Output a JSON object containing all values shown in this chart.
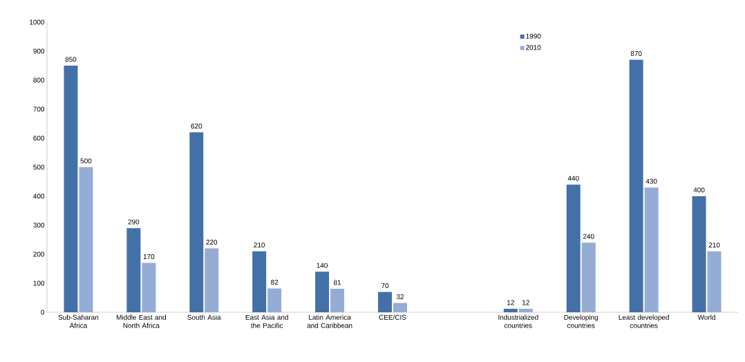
{
  "chart_data": {
    "type": "bar",
    "categories": [
      "Sub-Saharan Africa",
      "Middle East and North Africa",
      "South Asia",
      "East Asia and the Pacific",
      "Latin America and Caribbean",
      "CEE/CIS",
      null,
      "Industrialized countries",
      "Developing countries",
      "Least developed countries",
      "World"
    ],
    "series": [
      {
        "name": "1990",
        "color": "#4470a8",
        "values": [
          850,
          290,
          620,
          210,
          140,
          70,
          null,
          12,
          440,
          870,
          400
        ]
      },
      {
        "name": "2010",
        "color": "#95add4",
        "values": [
          500,
          170,
          220,
          82,
          81,
          32,
          null,
          12,
          240,
          430,
          210
        ]
      }
    ],
    "ylim": [
      0,
      1000
    ],
    "yticks": [
      0,
      100,
      200,
      300,
      400,
      500,
      600,
      700,
      800,
      900,
      1000
    ],
    "data_labels": true,
    "legend": "top right",
    "grid": false
  }
}
